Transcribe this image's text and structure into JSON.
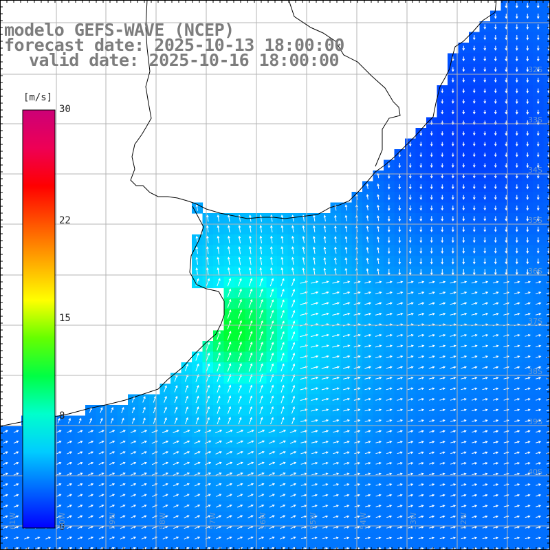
{
  "title": {
    "model": "modelo GEFS-WAVE (NCEP)",
    "forecast": "forecast date: 2025-10-13 18:00:00",
    "valid": "valid date: 2025-10-16 18:00:00"
  },
  "colorbar": {
    "units": "[m/s]",
    "ticks": [
      {
        "value": 30,
        "label": "30"
      },
      {
        "value": 22,
        "label": "22"
      },
      {
        "value": 15,
        "label": "15"
      },
      {
        "value": 8,
        "label": "8"
      },
      {
        "value": 0,
        "label": "0"
      }
    ],
    "min": 0,
    "max": 30,
    "colors": [
      "#0000ff",
      "#0066ff",
      "#00ccff",
      "#00ffcc",
      "#00ff44",
      "#66ff00",
      "#ffff00",
      "#ffaa00",
      "#ff5500",
      "#ff0000",
      "#ee0055",
      "#cc0077"
    ]
  },
  "grid": {
    "lat_labels": [
      "32S",
      "33S",
      "34S",
      "35S",
      "36S",
      "37S",
      "38S",
      "39S",
      "40S"
    ],
    "lon_labels": [
      "61W",
      "60W",
      "59W",
      "58W",
      "57W",
      "56W",
      "55W",
      "54W",
      "53W",
      "52W"
    ]
  },
  "colors": {
    "land": "#ffffff",
    "coast": "#000000",
    "grid": "#b4b4b4",
    "arrow": "#ffffff",
    "title": "#7d7d7d"
  }
}
